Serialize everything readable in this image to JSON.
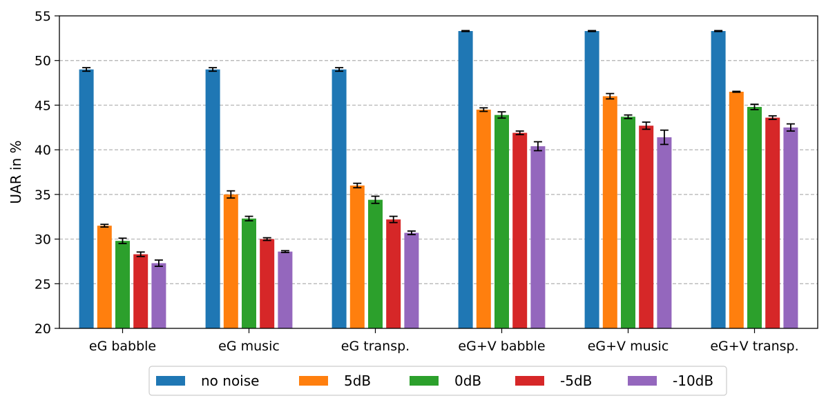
{
  "chart_data": {
    "type": "bar",
    "title": "",
    "xlabel": "",
    "ylabel": "UAR in %",
    "ylim": [
      20,
      55
    ],
    "yticks": [
      20,
      25,
      30,
      35,
      40,
      45,
      50,
      55
    ],
    "grid": "horizontal dashed",
    "legend_position": "bottom-center",
    "categories": [
      "eG babble",
      "eG music",
      "eG transp.",
      "eG+V babble",
      "eG+V music",
      "eG+V transp."
    ],
    "series": [
      {
        "name": "no noise",
        "color": "#1f77b4",
        "values": [
          49.0,
          49.0,
          49.0,
          53.3,
          53.3,
          53.3
        ],
        "errors": [
          0.2,
          0.2,
          0.2,
          0.05,
          0.05,
          0.05
        ]
      },
      {
        "name": "5dB",
        "color": "#ff7f0e",
        "values": [
          31.5,
          35.0,
          36.0,
          44.5,
          46.0,
          46.5
        ],
        "errors": [
          0.15,
          0.4,
          0.25,
          0.2,
          0.3,
          0.05
        ]
      },
      {
        "name": "0dB",
        "color": "#2ca02c",
        "values": [
          29.8,
          32.3,
          34.4,
          43.9,
          43.7,
          44.8
        ],
        "errors": [
          0.3,
          0.25,
          0.4,
          0.35,
          0.2,
          0.3
        ]
      },
      {
        "name": "-5dB",
        "color": "#d62728",
        "values": [
          28.3,
          30.0,
          32.2,
          41.9,
          42.7,
          43.6
        ],
        "errors": [
          0.25,
          0.15,
          0.35,
          0.2,
          0.4,
          0.2
        ]
      },
      {
        "name": "-10dB",
        "color": "#9467bd",
        "values": [
          27.3,
          28.6,
          30.7,
          40.4,
          41.4,
          42.5
        ],
        "errors": [
          0.35,
          0.1,
          0.2,
          0.5,
          0.8,
          0.4
        ]
      }
    ]
  }
}
